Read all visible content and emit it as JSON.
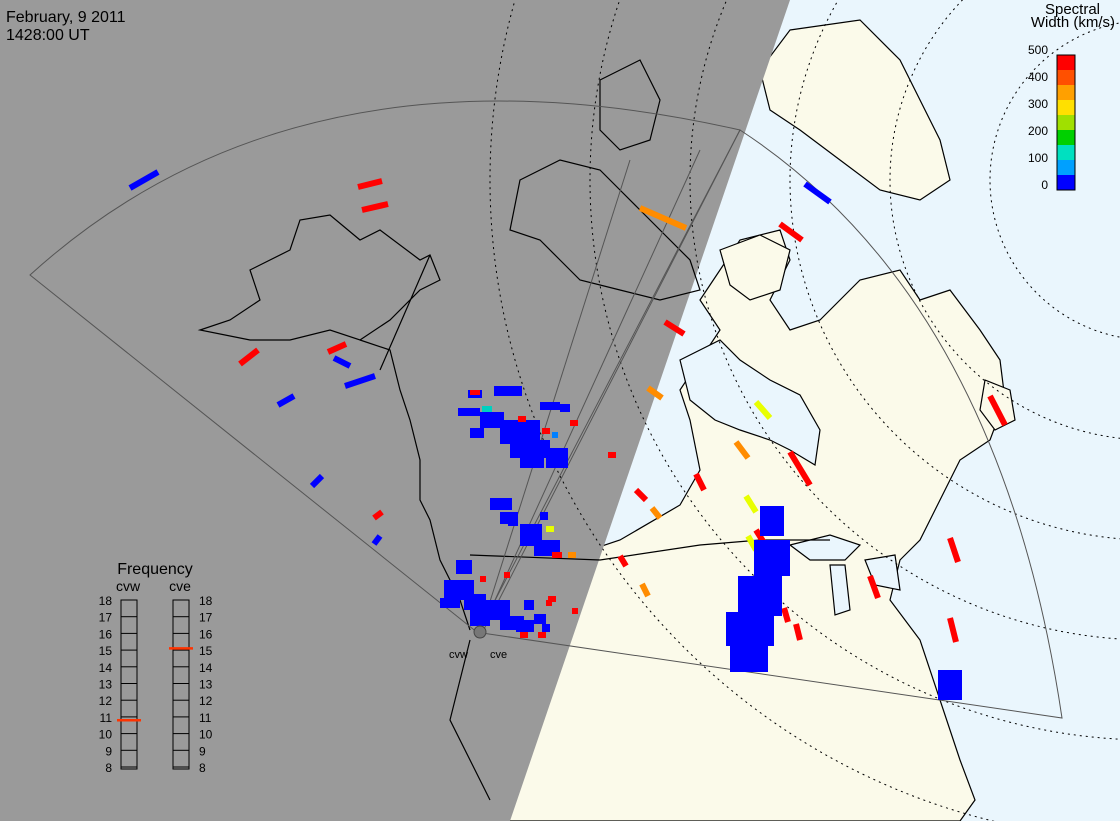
{
  "header": {
    "date": "February, 9 2011",
    "time": "1428:00 UT"
  },
  "colorbar": {
    "title_line1": "Spectral",
    "title_line2": "Width (km/s)",
    "ticks": [
      "500",
      "400",
      "300",
      "200",
      "100",
      "0"
    ],
    "colors": [
      "#0000ff",
      "#00a0ff",
      "#00e0c0",
      "#00d000",
      "#a0e000",
      "#ffe000",
      "#ffa000",
      "#ff5000",
      "#ff0000"
    ]
  },
  "frequency_panel": {
    "title": "Frequency",
    "radars": [
      {
        "label": "cvw",
        "value_mhz": 10.8
      },
      {
        "label": "cve",
        "value_mhz": 15.1
      }
    ],
    "scale_labels": [
      "18",
      "17",
      "16",
      "15",
      "14",
      "13",
      "12",
      "11",
      "10",
      "9",
      "8"
    ],
    "indicator_color": "#ff3300"
  },
  "radar_sites": [
    {
      "label": "cvw"
    },
    {
      "label": "cve"
    }
  ],
  "colors": {
    "night_shade": "#9a9a9a",
    "day_land": "#fbfaea",
    "day_ocean": "#eaf6fd",
    "coast": "#000000",
    "fov_outline": "#555555",
    "grid": "#000000",
    "echo_low": "#0000ff",
    "echo_high": "#ff0000",
    "echo_mid": "#ff8c00",
    "echo_yellow": "#e8ff00",
    "echo_cyan": "#00d0c0"
  }
}
